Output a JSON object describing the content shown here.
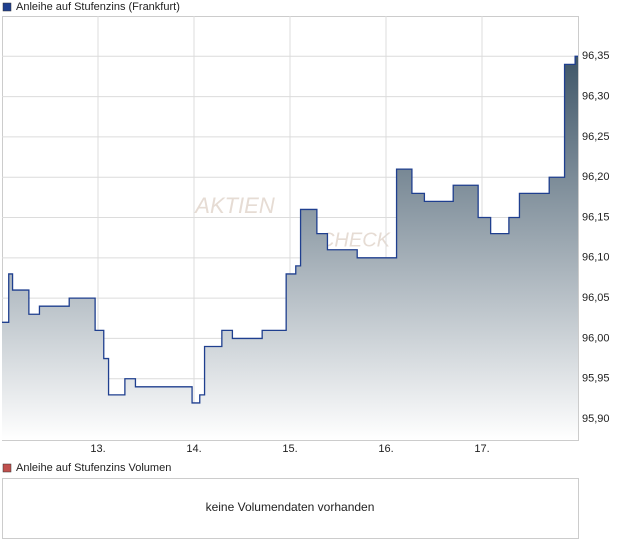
{
  "chart_data": {
    "type": "line",
    "step": "post",
    "series": [
      {
        "name": "Anleihe auf Stufenzins (Frankfurt)",
        "color": "#1f3f8f",
        "x": [
          12.0,
          12.07,
          12.11,
          12.28,
          12.39,
          12.7,
          12.97,
          13.06,
          13.11,
          13.28,
          13.39,
          13.98,
          14.06,
          14.11,
          14.29,
          14.4,
          14.71,
          14.96,
          15.06,
          15.11,
          15.28,
          15.39,
          15.7,
          16.11,
          16.27,
          16.4,
          16.7,
          16.96,
          17.09,
          17.28,
          17.39,
          17.7,
          17.86,
          17.97
        ],
        "values": [
          96.02,
          96.08,
          96.06,
          96.03,
          96.04,
          96.05,
          96.01,
          95.975,
          95.93,
          95.95,
          95.94,
          95.92,
          95.93,
          95.99,
          96.01,
          96.0,
          96.01,
          96.08,
          96.09,
          96.16,
          96.13,
          96.11,
          96.1,
          96.21,
          96.18,
          96.17,
          96.19,
          96.15,
          96.13,
          96.15,
          96.18,
          96.2,
          96.34,
          96.35
        ]
      }
    ],
    "xlim": [
      12,
      18
    ],
    "xticks": [
      {
        "value": 13,
        "label": "13."
      },
      {
        "value": 14,
        "label": "14."
      },
      {
        "value": 15,
        "label": "15."
      },
      {
        "value": 16,
        "label": "16."
      },
      {
        "value": 17,
        "label": "17."
      }
    ],
    "ylim": [
      95.874,
      96.4
    ],
    "yticks": [
      {
        "value": 95.9,
        "label": "95,90"
      },
      {
        "value": 95.95,
        "label": "95,95"
      },
      {
        "value": 96.0,
        "label": "96,00"
      },
      {
        "value": 96.05,
        "label": "96,05"
      },
      {
        "value": 96.1,
        "label": "96,10"
      },
      {
        "value": 96.15,
        "label": "96,15"
      },
      {
        "value": 96.2,
        "label": "96,20"
      },
      {
        "value": 96.25,
        "label": "96,25"
      },
      {
        "value": 96.3,
        "label": "96,30"
      },
      {
        "value": 96.35,
        "label": "96,35"
      }
    ],
    "grid": true,
    "watermark": [
      "AKTIEN",
      "CHECK"
    ]
  },
  "volume_panel": {
    "title": "Anleihe auf Stufenzins Volumen",
    "color": "#c0504d",
    "message": "keine Volumendaten vorhanden"
  }
}
